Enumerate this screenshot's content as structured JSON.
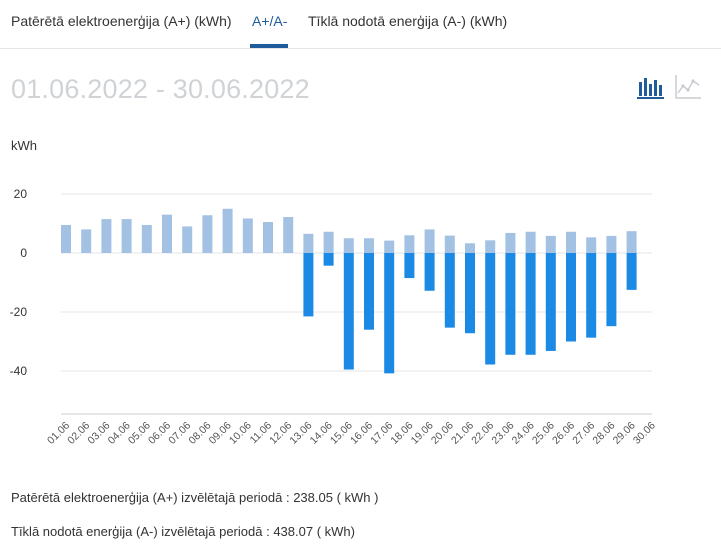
{
  "tabs": [
    {
      "label": "Patērētā elektroenerģija (A+) (kWh)",
      "active": false
    },
    {
      "label": "A+/A-",
      "active": true
    },
    {
      "label": "Tīklā nodotā enerģija (A-) (kWh)",
      "active": false
    }
  ],
  "period_label": "01.06.2022 - 30.06.2022",
  "view_toggle": {
    "bar_icon": "bar-chart-icon",
    "line_icon": "line-chart-icon",
    "active": "bar"
  },
  "colors": {
    "consumed": "#a3c1e2",
    "exported": "#1b8ae4",
    "active_tab": "#1f5c99",
    "period_text": "#d0d3d6",
    "grid": "#e6e6e6"
  },
  "chart_data": {
    "type": "bar",
    "ylabel": "kWh",
    "ylim": [
      -55,
      27
    ],
    "yticks": [
      20,
      0,
      -20,
      -40
    ],
    "grid": true,
    "categories": [
      "01.06",
      "02.06",
      "03.06",
      "04.06",
      "05.06",
      "06.06",
      "07.06",
      "08.06",
      "09.06",
      "10.06",
      "11.06",
      "12.06",
      "13.06",
      "14.06",
      "15.06",
      "16.06",
      "17.06",
      "18.06",
      "19.06",
      "20.06",
      "21.06",
      "22.06",
      "23.06",
      "24.06",
      "25.06",
      "26.06",
      "27.06",
      "28.06",
      "29.06",
      "30.06"
    ],
    "series": [
      {
        "key": "consumed",
        "values": [
          9.5,
          8,
          11.5,
          11.5,
          9.5,
          13,
          9,
          12.8,
          15,
          11.7,
          10.5,
          12.2,
          6.5,
          7.2,
          5,
          5,
          4.2,
          6,
          8,
          5.9,
          3.3,
          4.3,
          6.8,
          7.2,
          5.8,
          7.2,
          5.3,
          5.8,
          7.4,
          0
        ]
      },
      {
        "key": "exported",
        "values": [
          0,
          0,
          0,
          0,
          0,
          0,
          0,
          0,
          0,
          0,
          0,
          0,
          -21.5,
          -4.3,
          -39.5,
          -26,
          -40.8,
          -8.5,
          -12.8,
          -25.3,
          -27.2,
          -37.8,
          -34.5,
          -34.5,
          -33.2,
          -30,
          -28.7,
          -24.8,
          -12.5,
          0
        ]
      }
    ]
  },
  "summary": {
    "consumed_label": "Patērētā elektroenerģija (A+) izvēlētajā periodā : ",
    "consumed_value": "238.05",
    "consumed_unit": " ( kWh )",
    "exported_label": "Tīklā nodotā enerģija (A-) izvēlētajā periodā : ",
    "exported_value": "438.07",
    "exported_unit": " ( kWh)"
  }
}
